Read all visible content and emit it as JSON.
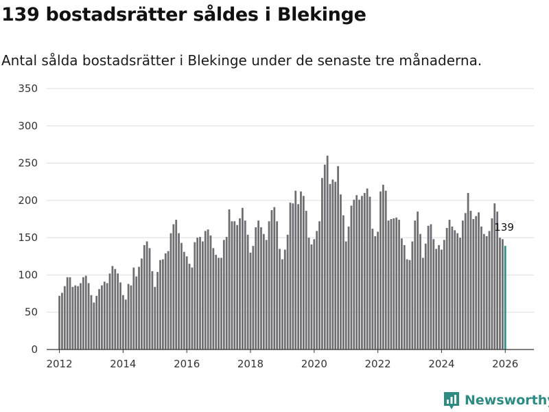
{
  "title": "139 bostadsrätter såldes i Blekinge",
  "subtitle": "Antal sålda bostadsrätter i Blekinge under de senaste tre månaderna.",
  "brand": {
    "name": "Newsworthy",
    "logo_icon": "bar-chart-logo-icon"
  },
  "colors": {
    "bar": "#6e6d72",
    "highlight": "#2a8f87",
    "grid": "#dcdcdc",
    "brand": "#2e8b84"
  },
  "chart_data": {
    "type": "bar",
    "title": "139 bostadsrätter såldes i Blekinge",
    "xlabel": "",
    "ylabel": "",
    "ylim": [
      0,
      350
    ],
    "yticks": [
      0,
      50,
      100,
      150,
      200,
      250,
      300,
      350
    ],
    "ytick_labels": [
      "0",
      "50",
      "100",
      "150",
      "200",
      "250",
      "300",
      "350"
    ],
    "xticks": [
      2012,
      2014,
      2016,
      2018,
      2020,
      2022,
      2024,
      2026
    ],
    "xtick_labels": [
      "2012",
      "2014",
      "2016",
      "2018",
      "2020",
      "2022",
      "2024",
      "2026"
    ],
    "xlim": [
      2011.6,
      2026.9
    ],
    "start": {
      "year": 2012,
      "month": 1
    },
    "grid": true,
    "highlight_last": true,
    "last_value_label": "139",
    "values": [
      72,
      76,
      85,
      97,
      97,
      84,
      86,
      85,
      89,
      97,
      99,
      89,
      73,
      63,
      72,
      81,
      86,
      91,
      89,
      102,
      112,
      108,
      102,
      90,
      73,
      67,
      88,
      86,
      110,
      98,
      111,
      122,
      140,
      145,
      136,
      105,
      84,
      104,
      120,
      121,
      129,
      132,
      156,
      168,
      174,
      156,
      143,
      131,
      125,
      115,
      110,
      144,
      150,
      151,
      145,
      159,
      161,
      153,
      136,
      127,
      123,
      123,
      147,
      151,
      188,
      172,
      172,
      167,
      176,
      190,
      173,
      154,
      130,
      139,
      164,
      173,
      164,
      155,
      147,
      172,
      187,
      191,
      172,
      135,
      121,
      134,
      154,
      197,
      196,
      213,
      195,
      212,
      206,
      186,
      150,
      141,
      148,
      159,
      172,
      230,
      248,
      260,
      222,
      228,
      225,
      246,
      208,
      180,
      145,
      165,
      193,
      201,
      207,
      201,
      206,
      210,
      216,
      205,
      162,
      152,
      158,
      212,
      221,
      213,
      173,
      175,
      176,
      177,
      174,
      149,
      140,
      121,
      120,
      145,
      173,
      185,
      155,
      123,
      142,
      166,
      168,
      148,
      135,
      140,
      134,
      147,
      163,
      174,
      165,
      160,
      156,
      150,
      173,
      183,
      210,
      186,
      175,
      179,
      184,
      165,
      155,
      152,
      159,
      176,
      196,
      185,
      150,
      148,
      139
    ]
  }
}
